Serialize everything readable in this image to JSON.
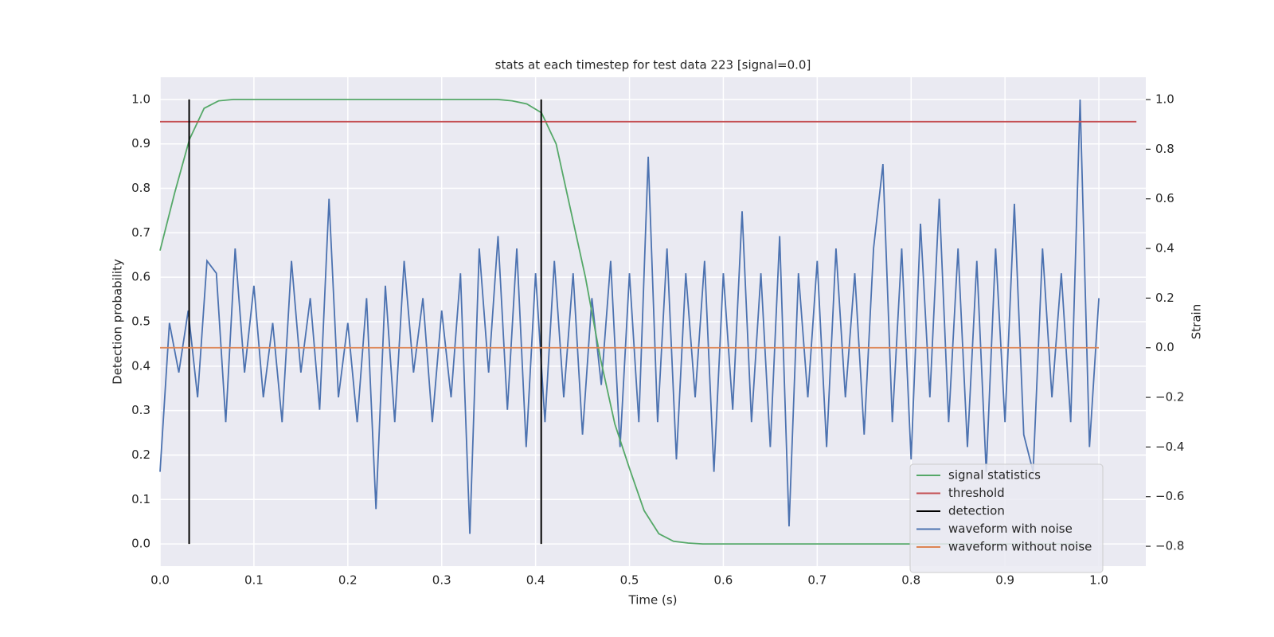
{
  "chart_data": {
    "type": "line",
    "title": "stats at each timestep for test data 223 [signal=0.0]",
    "x_label": "Time (s)",
    "y_label": "Detection probability",
    "y2_label": "Strain",
    "xlim": [
      0,
      1.05
    ],
    "ylim": [
      -0.05,
      1.05
    ],
    "y2lim": [
      -0.88,
      1.09
    ],
    "xticks": [
      {
        "value": 0,
        "label": "0.0"
      },
      0.1,
      0.2,
      0.3,
      0.4,
      0.5,
      0.6,
      0.7,
      0.8,
      0.9,
      {
        "value": 1,
        "label": "1.0"
      }
    ],
    "yticks": [
      {
        "value": 0,
        "label": "0.0"
      },
      0.1,
      0.2,
      0.3,
      0.4,
      0.5,
      0.6,
      0.7,
      0.8,
      0.9,
      {
        "value": 1,
        "label": "1.0"
      }
    ],
    "y2ticks": [
      {
        "value": -0.8,
        "label": "−0.8"
      },
      {
        "value": -0.6,
        "label": "−0.6"
      },
      {
        "value": -0.4,
        "label": "−0.4"
      },
      {
        "value": -0.2,
        "label": "−0.2"
      },
      {
        "value": 0,
        "label": "0.0"
      },
      0.2,
      0.4,
      0.6,
      0.8,
      {
        "value": 1,
        "label": "1.0"
      }
    ],
    "grid": true,
    "background": "#eaeaf2",
    "legend": "lower right",
    "series": [
      {
        "name": "signal statistics",
        "color": "#55a868",
        "x": [
          0,
          0.0156,
          0.0313,
          0.0469,
          0.0625,
          0.0781,
          0.0938,
          0.1094,
          0.125,
          0.1406,
          0.1563,
          0.1719,
          0.1875,
          0.2031,
          0.2188,
          0.2344,
          0.25,
          0.2656,
          0.2813,
          0.2969,
          0.3125,
          0.3281,
          0.3438,
          0.3594,
          0.375,
          0.3906,
          0.4063,
          0.4219,
          0.4375,
          0.4531,
          0.4688,
          0.4844,
          0.5,
          0.5156,
          0.5313,
          0.5469,
          0.5625,
          0.5781,
          0.5938,
          0.6094,
          0.625,
          0.6406,
          0.6563,
          0.6719,
          0.6875,
          0.7031,
          0.7188,
          0.7344,
          0.75,
          0.7656,
          0.7813,
          0.7969,
          0.8125,
          0.8281,
          0.8438,
          0.8594,
          0.875,
          0.8906,
          0.9063,
          0.9219,
          0.9375,
          0.9531,
          0.9688,
          0.9844
        ],
        "values": [
          0.66,
          0.79,
          0.91,
          0.98,
          0.997,
          1,
          1,
          1,
          1,
          1,
          1,
          1,
          1,
          1,
          1,
          1,
          1,
          1,
          1,
          1,
          1,
          1,
          1,
          1,
          0.997,
          0.99,
          0.97,
          0.9,
          0.75,
          0.6,
          0.42,
          0.27,
          0.17,
          0.075,
          0.023,
          0.006,
          0.002,
          0,
          0,
          0,
          0,
          0,
          0,
          0,
          0,
          0,
          0,
          0,
          0,
          0,
          0,
          0,
          0,
          0,
          0,
          0,
          0,
          0,
          0,
          0,
          0,
          0,
          0,
          0
        ]
      },
      {
        "name": "threshold",
        "color": "#c44e52",
        "x": [
          0,
          1.04
        ],
        "values": [
          0.95,
          0.95
        ]
      },
      {
        "name": "detection",
        "color": "#000000",
        "kind": "vlines",
        "x": [
          0.031,
          0.406
        ],
        "ymin": [
          0,
          0
        ],
        "ymax": [
          1,
          1
        ]
      },
      {
        "name": "waveform with noise",
        "color": "#4c72b0",
        "axis": "y2",
        "x": [
          0,
          0.01,
          0.02,
          0.03,
          0.04,
          0.05,
          0.06,
          0.07,
          0.08,
          0.09,
          0.1,
          0.11,
          0.12,
          0.13,
          0.14,
          0.15,
          0.16,
          0.17,
          0.18,
          0.19,
          0.2,
          0.21,
          0.22,
          0.23,
          0.24,
          0.25,
          0.26,
          0.27,
          0.28,
          0.29,
          0.3,
          0.31,
          0.32,
          0.33,
          0.34,
          0.35,
          0.36,
          0.37,
          0.38,
          0.39,
          0.4,
          0.41,
          0.42,
          0.43,
          0.44,
          0.45,
          0.46,
          0.47,
          0.48,
          0.49,
          0.5,
          0.51,
          0.52,
          0.53,
          0.54,
          0.55,
          0.56,
          0.57,
          0.58,
          0.59,
          0.6,
          0.61,
          0.62,
          0.63,
          0.64,
          0.65,
          0.66,
          0.67,
          0.68,
          0.69,
          0.7,
          0.71,
          0.72,
          0.73,
          0.74,
          0.75,
          0.76,
          0.77,
          0.78,
          0.79,
          0.8,
          0.81,
          0.82,
          0.83,
          0.84,
          0.85,
          0.86,
          0.87,
          0.88,
          0.89,
          0.9,
          0.91,
          0.92,
          0.93,
          0.94,
          0.95,
          0.96,
          0.97,
          0.98,
          0.99,
          1
        ],
        "values": [
          -0.5,
          0.1,
          -0.1,
          0.15,
          -0.2,
          0.35,
          0.3,
          -0.3,
          0.4,
          -0.1,
          0.25,
          -0.2,
          0.1,
          -0.3,
          0.35,
          -0.1,
          0.2,
          -0.25,
          0.6,
          -0.2,
          0.1,
          -0.3,
          0.2,
          -0.65,
          0.25,
          -0.3,
          0.35,
          -0.1,
          0.2,
          -0.3,
          0.15,
          -0.2,
          0.3,
          -0.75,
          0.4,
          -0.1,
          0.45,
          -0.25,
          0.4,
          -0.4,
          0.3,
          -0.3,
          0.35,
          -0.2,
          0.3,
          -0.35,
          0.2,
          -0.15,
          0.35,
          -0.4,
          0.3,
          -0.3,
          0.77,
          -0.3,
          0.4,
          -0.45,
          0.3,
          -0.2,
          0.35,
          -0.5,
          0.3,
          -0.25,
          0.55,
          -0.3,
          0.3,
          -0.4,
          0.45,
          -0.72,
          0.3,
          -0.2,
          0.35,
          -0.4,
          0.4,
          -0.2,
          0.3,
          -0.35,
          0.4,
          0.74,
          -0.3,
          0.4,
          -0.45,
          0.5,
          -0.2,
          0.6,
          -0.3,
          0.4,
          -0.4,
          0.35,
          -0.5,
          0.4,
          -0.3,
          0.58,
          -0.35,
          -0.5,
          0.4,
          -0.2,
          0.3,
          -0.3,
          1,
          -0.4,
          0.2
        ]
      },
      {
        "name": "waveform without noise",
        "color": "#dd8452",
        "axis": "y2",
        "x": [
          0,
          1
        ],
        "values": [
          0,
          0
        ]
      }
    ]
  }
}
